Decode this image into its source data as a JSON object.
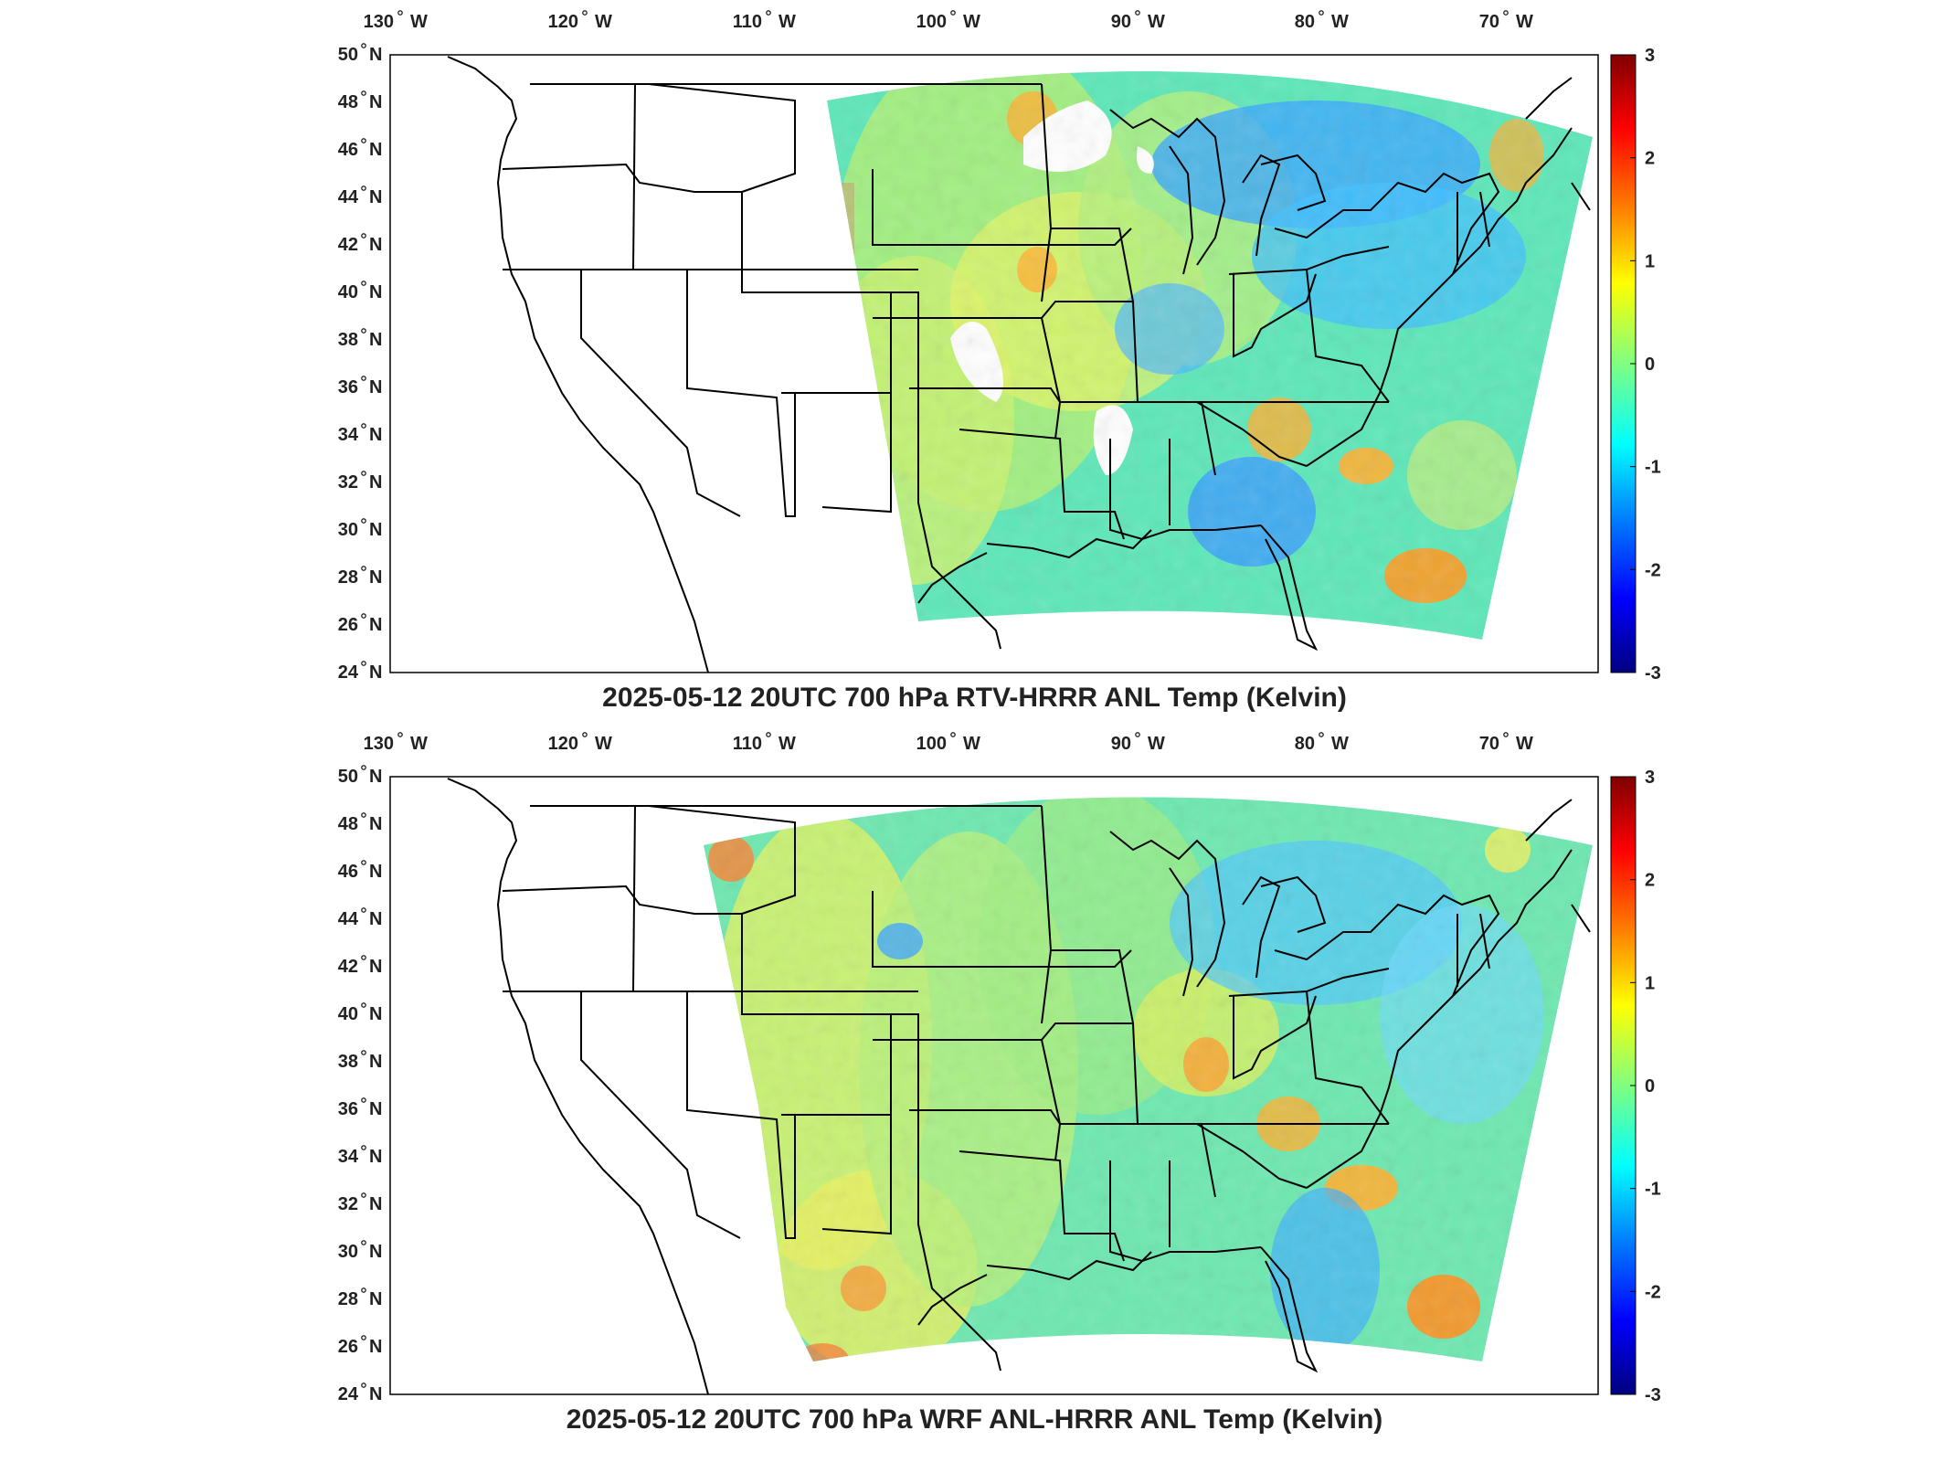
{
  "panels": [
    {
      "id": "top",
      "title": "2025-05-12 20UTC 700 hPa RTV-HRRR ANL Temp (Kelvin)",
      "lon_labels": [
        "130",
        "120",
        "110",
        "100",
        "90",
        "80",
        "70"
      ],
      "lon_suffix": "W",
      "lat_labels": [
        "50",
        "48",
        "46",
        "44",
        "42",
        "40",
        "38",
        "36",
        "34",
        "32",
        "30",
        "28",
        "26",
        "24"
      ],
      "lat_suffix": "N",
      "colorbar_ticks": [
        "3",
        "2",
        "1",
        "0",
        "-1",
        "-2",
        "-3"
      ]
    },
    {
      "id": "bottom",
      "title": "2025-05-12 20UTC 700 hPa WRF ANL-HRRR ANL Temp (Kelvin)",
      "lon_labels": [
        "130",
        "120",
        "110",
        "100",
        "90",
        "80",
        "70"
      ],
      "lon_suffix": "W",
      "lat_labels": [
        "50",
        "48",
        "46",
        "44",
        "42",
        "40",
        "38",
        "36",
        "34",
        "32",
        "30",
        "28",
        "26",
        "24"
      ],
      "lat_suffix": "N",
      "colorbar_ticks": [
        "3",
        "2",
        "1",
        "0",
        "-1",
        "-2",
        "-3"
      ]
    }
  ],
  "colorscale": [
    "#00007f",
    "#0000ff",
    "#007fff",
    "#00ffff",
    "#7fff7f",
    "#ffff00",
    "#ff7f00",
    "#ff0000",
    "#7f0000"
  ],
  "missing_color": "#ffffff",
  "border_color": "#000000"
}
